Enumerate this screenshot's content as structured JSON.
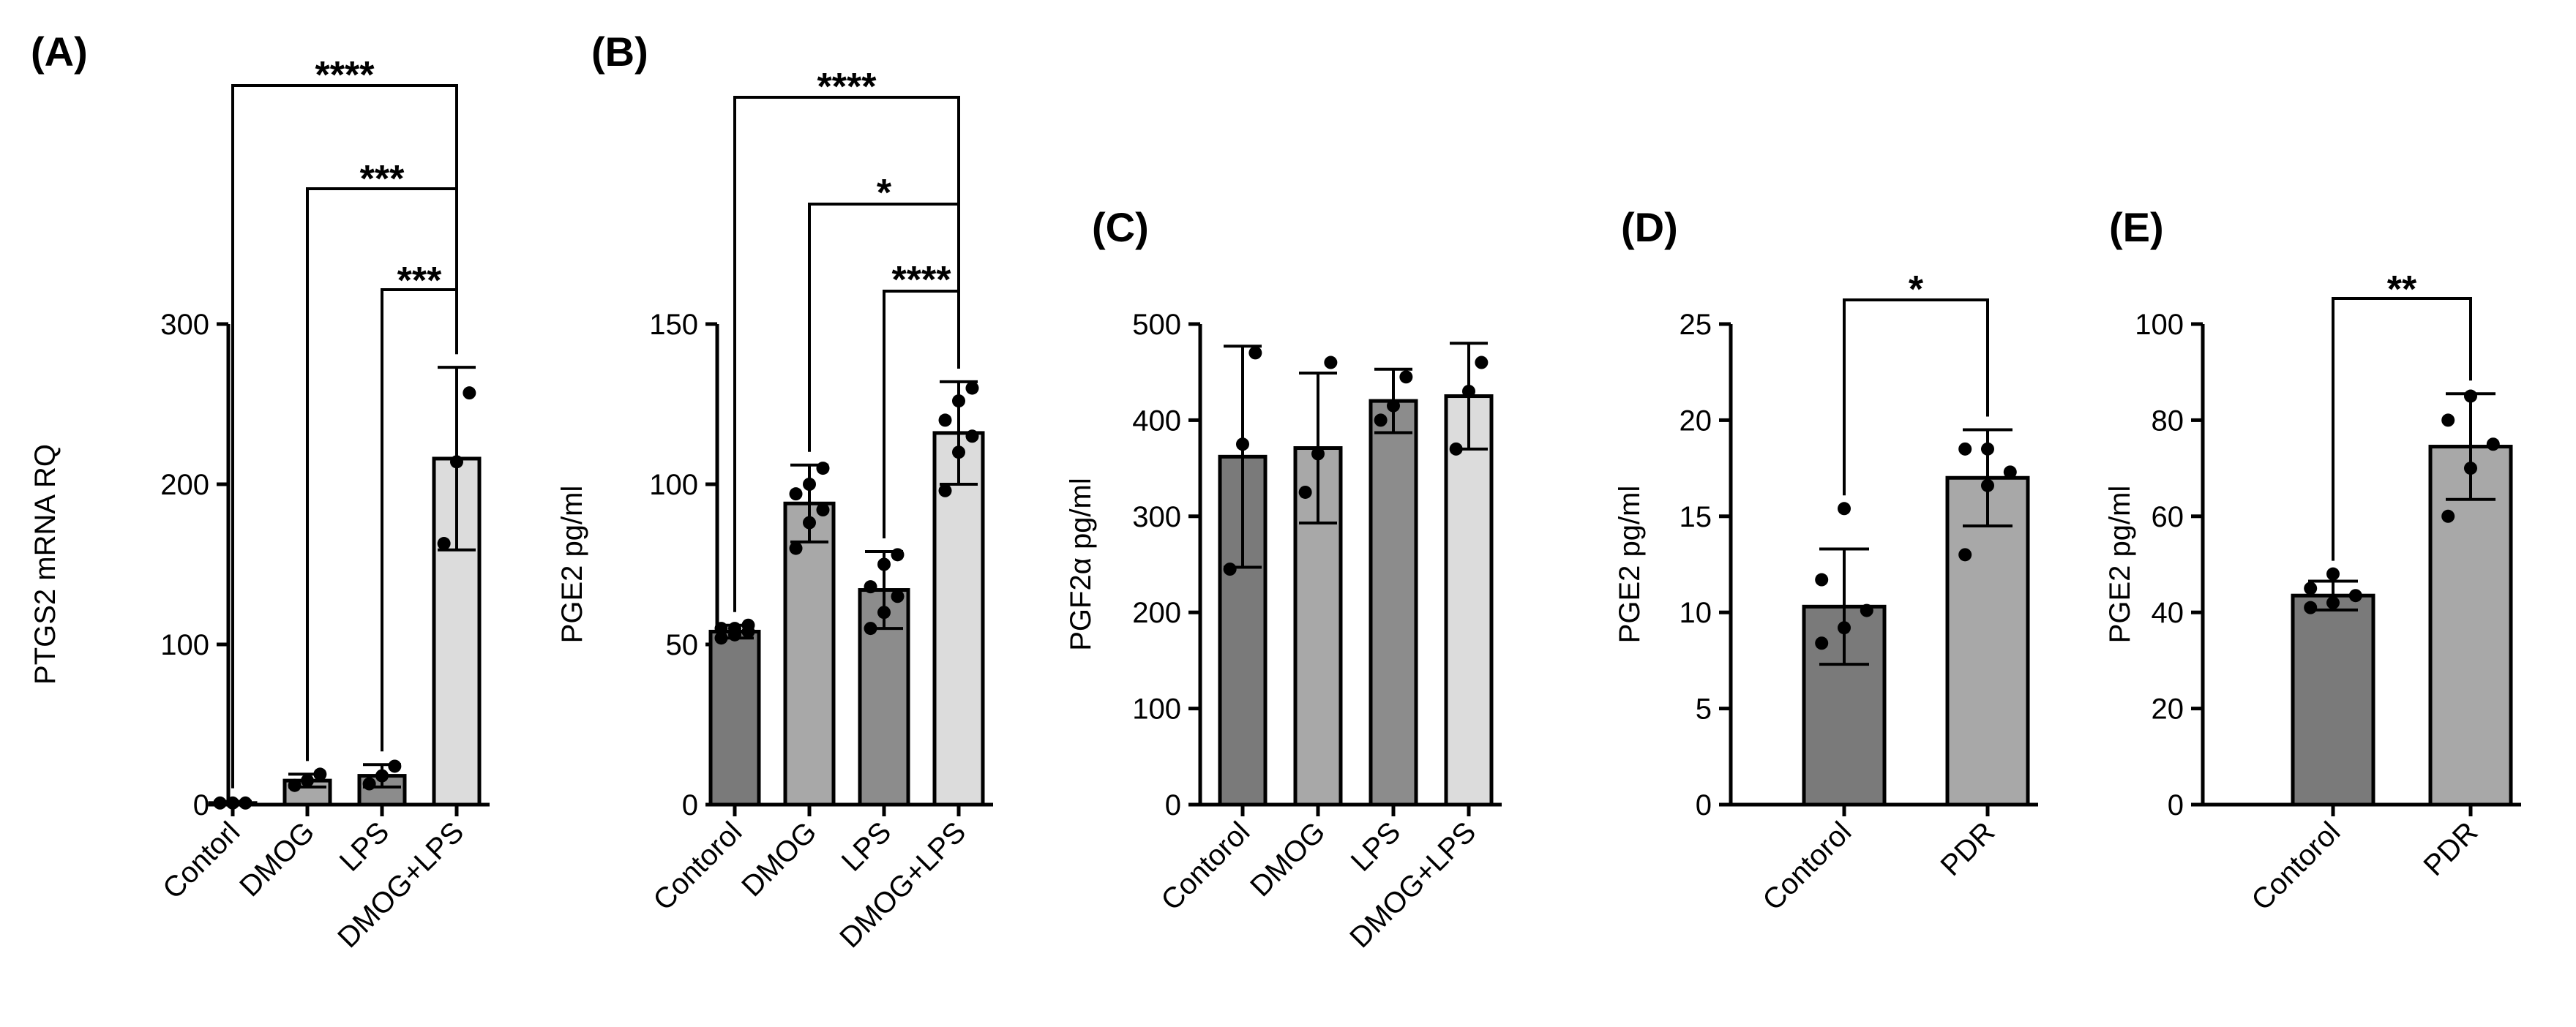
{
  "chart_data": [
    {
      "type": "bar",
      "panel": "(A)",
      "ylabel": "PTGS2 mRNA RQ",
      "ylim": [
        0,
        300
      ],
      "yticks": [
        0,
        100,
        200,
        300
      ],
      "categories": [
        "Contorl",
        "DMOG",
        "LPS",
        "DMOG+LPS"
      ],
      "values": [
        1,
        15,
        18,
        216
      ],
      "errors": [
        1,
        4,
        7,
        57
      ],
      "points": [
        [
          1,
          1,
          1
        ],
        [
          12,
          15,
          19
        ],
        [
          13,
          18,
          24
        ],
        [
          163,
          214,
          257
        ]
      ],
      "bar_colors": [
        "#7a7a7a",
        "#a8a8a8",
        "#8c8c8c",
        "#dcdcdc"
      ],
      "significance": [
        {
          "from": 0,
          "to": 3,
          "label": "****"
        },
        {
          "from": 1,
          "to": 3,
          "label": "***"
        },
        {
          "from": 2,
          "to": 3,
          "label": "***"
        }
      ]
    },
    {
      "type": "bar",
      "panel": "(B)",
      "ylabel": "PGE2 pg/ml",
      "ylim": [
        0,
        150
      ],
      "yticks": [
        0,
        50,
        100,
        150
      ],
      "categories": [
        "Contorol",
        "DMOG",
        "LPS",
        "DMOG+LPS"
      ],
      "values": [
        54,
        94,
        67,
        116
      ],
      "errors": [
        2,
        12,
        12,
        16
      ],
      "points": [
        [
          52,
          53,
          54,
          55,
          55,
          56
        ],
        [
          80,
          88,
          92,
          97,
          100,
          105
        ],
        [
          55,
          60,
          65,
          68,
          75,
          78
        ],
        [
          98,
          110,
          115,
          120,
          126,
          130
        ]
      ],
      "bar_colors": [
        "#7a7a7a",
        "#a8a8a8",
        "#8c8c8c",
        "#dcdcdc"
      ],
      "significance": [
        {
          "from": 0,
          "to": 3,
          "label": "****"
        },
        {
          "from": 1,
          "to": 3,
          "label": "*"
        },
        {
          "from": 2,
          "to": 3,
          "label": "****"
        }
      ]
    },
    {
      "type": "bar",
      "panel": "(C)",
      "ylabel": "PGF2α pg/ml",
      "ylim": [
        0,
        500
      ],
      "yticks": [
        0,
        100,
        200,
        300,
        400,
        500
      ],
      "categories": [
        "Contorol",
        "DMOG",
        "LPS",
        "DMOG+LPS"
      ],
      "values": [
        362,
        371,
        420,
        425
      ],
      "errors": [
        115,
        78,
        33,
        55
      ],
      "points": [
        [
          245,
          375,
          470
        ],
        [
          325,
          365,
          460
        ],
        [
          400,
          415,
          445
        ],
        [
          370,
          430,
          460
        ]
      ],
      "bar_colors": [
        "#7a7a7a",
        "#a8a8a8",
        "#8c8c8c",
        "#dcdcdc"
      ],
      "significance": []
    },
    {
      "type": "bar",
      "panel": "(D)",
      "ylabel": "PGE2 pg/ml",
      "ylim": [
        0,
        25
      ],
      "yticks": [
        0,
        5,
        10,
        15,
        20,
        25
      ],
      "categories": [
        "Contorol",
        "PDR"
      ],
      "values": [
        10.3,
        17.0
      ],
      "errors": [
        3.0,
        2.5
      ],
      "points": [
        [
          8.4,
          9.2,
          10.1,
          11.7,
          15.4
        ],
        [
          13.0,
          16.6,
          17.3,
          18.5,
          18.5
        ]
      ],
      "bar_colors": [
        "#7a7a7a",
        "#a8a8a8"
      ],
      "significance": [
        {
          "from": 0,
          "to": 1,
          "label": "*"
        }
      ]
    },
    {
      "type": "bar",
      "panel": "(E)",
      "ylabel": "PGE2 pg/ml",
      "ylim": [
        0,
        100
      ],
      "yticks": [
        0,
        20,
        40,
        60,
        80,
        100
      ],
      "categories": [
        "Contorol",
        "PDR"
      ],
      "values": [
        43.5,
        74.5
      ],
      "errors": [
        3.0,
        11.0
      ],
      "points": [
        [
          41,
          42,
          43.5,
          45,
          48
        ],
        [
          60,
          70,
          75,
          80,
          85
        ]
      ],
      "bar_colors": [
        "#7a7a7a",
        "#a8a8a8"
      ],
      "significance": [
        {
          "from": 0,
          "to": 1,
          "label": "**"
        }
      ]
    }
  ]
}
